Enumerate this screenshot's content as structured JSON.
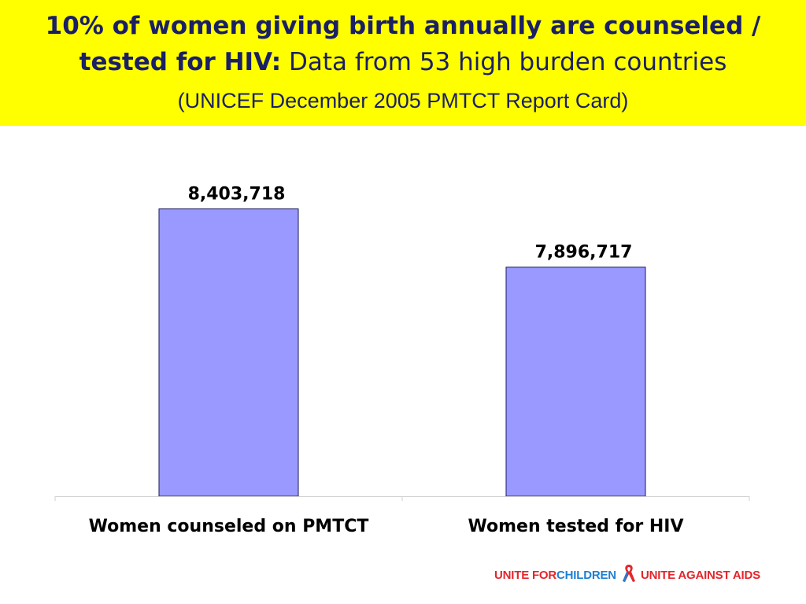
{
  "header": {
    "title_bold": "10% of women giving birth annually are counseled / tested for HIV:",
    "title_normal": " Data from 53 high burden countries",
    "source": "(UNICEF December 2005 PMTCT Report Card)",
    "background_color": "#ffff00",
    "text_color": "#1a1f66"
  },
  "chart_data": {
    "type": "bar",
    "categories": [
      "Women counseled on PMTCT",
      "Women tested for HIV"
    ],
    "values": [
      8403718,
      7896717
    ],
    "data_labels": [
      "8,403,718",
      "7,896,717"
    ],
    "title": "10% of women giving birth annually are counseled / tested for HIV: Data from 53 high burden countries",
    "xlabel": "",
    "ylabel": "",
    "ylim": [
      5900000,
      8600000
    ],
    "grid": false,
    "legend": "none",
    "bar_color": "#9999ff"
  },
  "logo": {
    "part1_red": "UNITE FOR ",
    "part1_blue": "CHILDREN",
    "part2_red": "UNITE AGAINST AIDS",
    "icon": "awareness-ribbon-icon"
  }
}
